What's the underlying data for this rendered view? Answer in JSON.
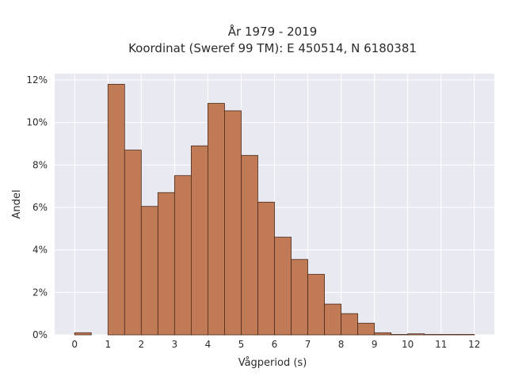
{
  "colors": {
    "plot_background": "#e9e9f1",
    "grid": "#ffffff",
    "bar_fill": "#c07b56",
    "bar_edge": "#4a2a1a"
  },
  "chart_data": {
    "type": "bar",
    "title_line1": "År 1979 - 2019",
    "title_line2": "Koordinat (Sweref 99 TM): E 450514, N 6180381",
    "xlabel": "Vågperiod (s)",
    "ylabel": "Andel",
    "xlim": [
      -0.6,
      12.6
    ],
    "ylim": [
      0,
      12.3
    ],
    "x_ticks": [
      0,
      1,
      2,
      3,
      4,
      5,
      6,
      7,
      8,
      9,
      10,
      11,
      12
    ],
    "x_tick_labels": [
      "0",
      "1",
      "2",
      "3",
      "4",
      "5",
      "6",
      "7",
      "8",
      "9",
      "10",
      "11",
      "12"
    ],
    "y_ticks": [
      0,
      2,
      4,
      6,
      8,
      10,
      12
    ],
    "y_tick_labels": [
      "0%",
      "2%",
      "4%",
      "6%",
      "8%",
      "10%",
      "12%"
    ],
    "grid": true,
    "bin_width": 0.5,
    "bins": [
      {
        "x0": 0.0,
        "value": 0.1
      },
      {
        "x0": 1.0,
        "value": 11.8
      },
      {
        "x0": 1.5,
        "value": 8.7
      },
      {
        "x0": 2.0,
        "value": 6.05
      },
      {
        "x0": 2.5,
        "value": 6.7
      },
      {
        "x0": 3.0,
        "value": 7.5
      },
      {
        "x0": 3.5,
        "value": 8.9
      },
      {
        "x0": 4.0,
        "value": 10.9
      },
      {
        "x0": 4.5,
        "value": 10.55
      },
      {
        "x0": 5.0,
        "value": 8.45
      },
      {
        "x0": 5.5,
        "value": 6.25
      },
      {
        "x0": 6.0,
        "value": 4.6
      },
      {
        "x0": 6.5,
        "value": 3.55
      },
      {
        "x0": 7.0,
        "value": 2.85
      },
      {
        "x0": 7.5,
        "value": 1.45
      },
      {
        "x0": 8.0,
        "value": 1.0
      },
      {
        "x0": 8.5,
        "value": 0.55
      },
      {
        "x0": 9.0,
        "value": 0.1
      },
      {
        "x0": 9.5,
        "value": 0.02
      },
      {
        "x0": 10.0,
        "value": 0.05
      },
      {
        "x0": 10.5,
        "value": 0.02
      },
      {
        "x0": 11.0,
        "value": 0.02
      },
      {
        "x0": 11.5,
        "value": 0.02
      }
    ]
  }
}
